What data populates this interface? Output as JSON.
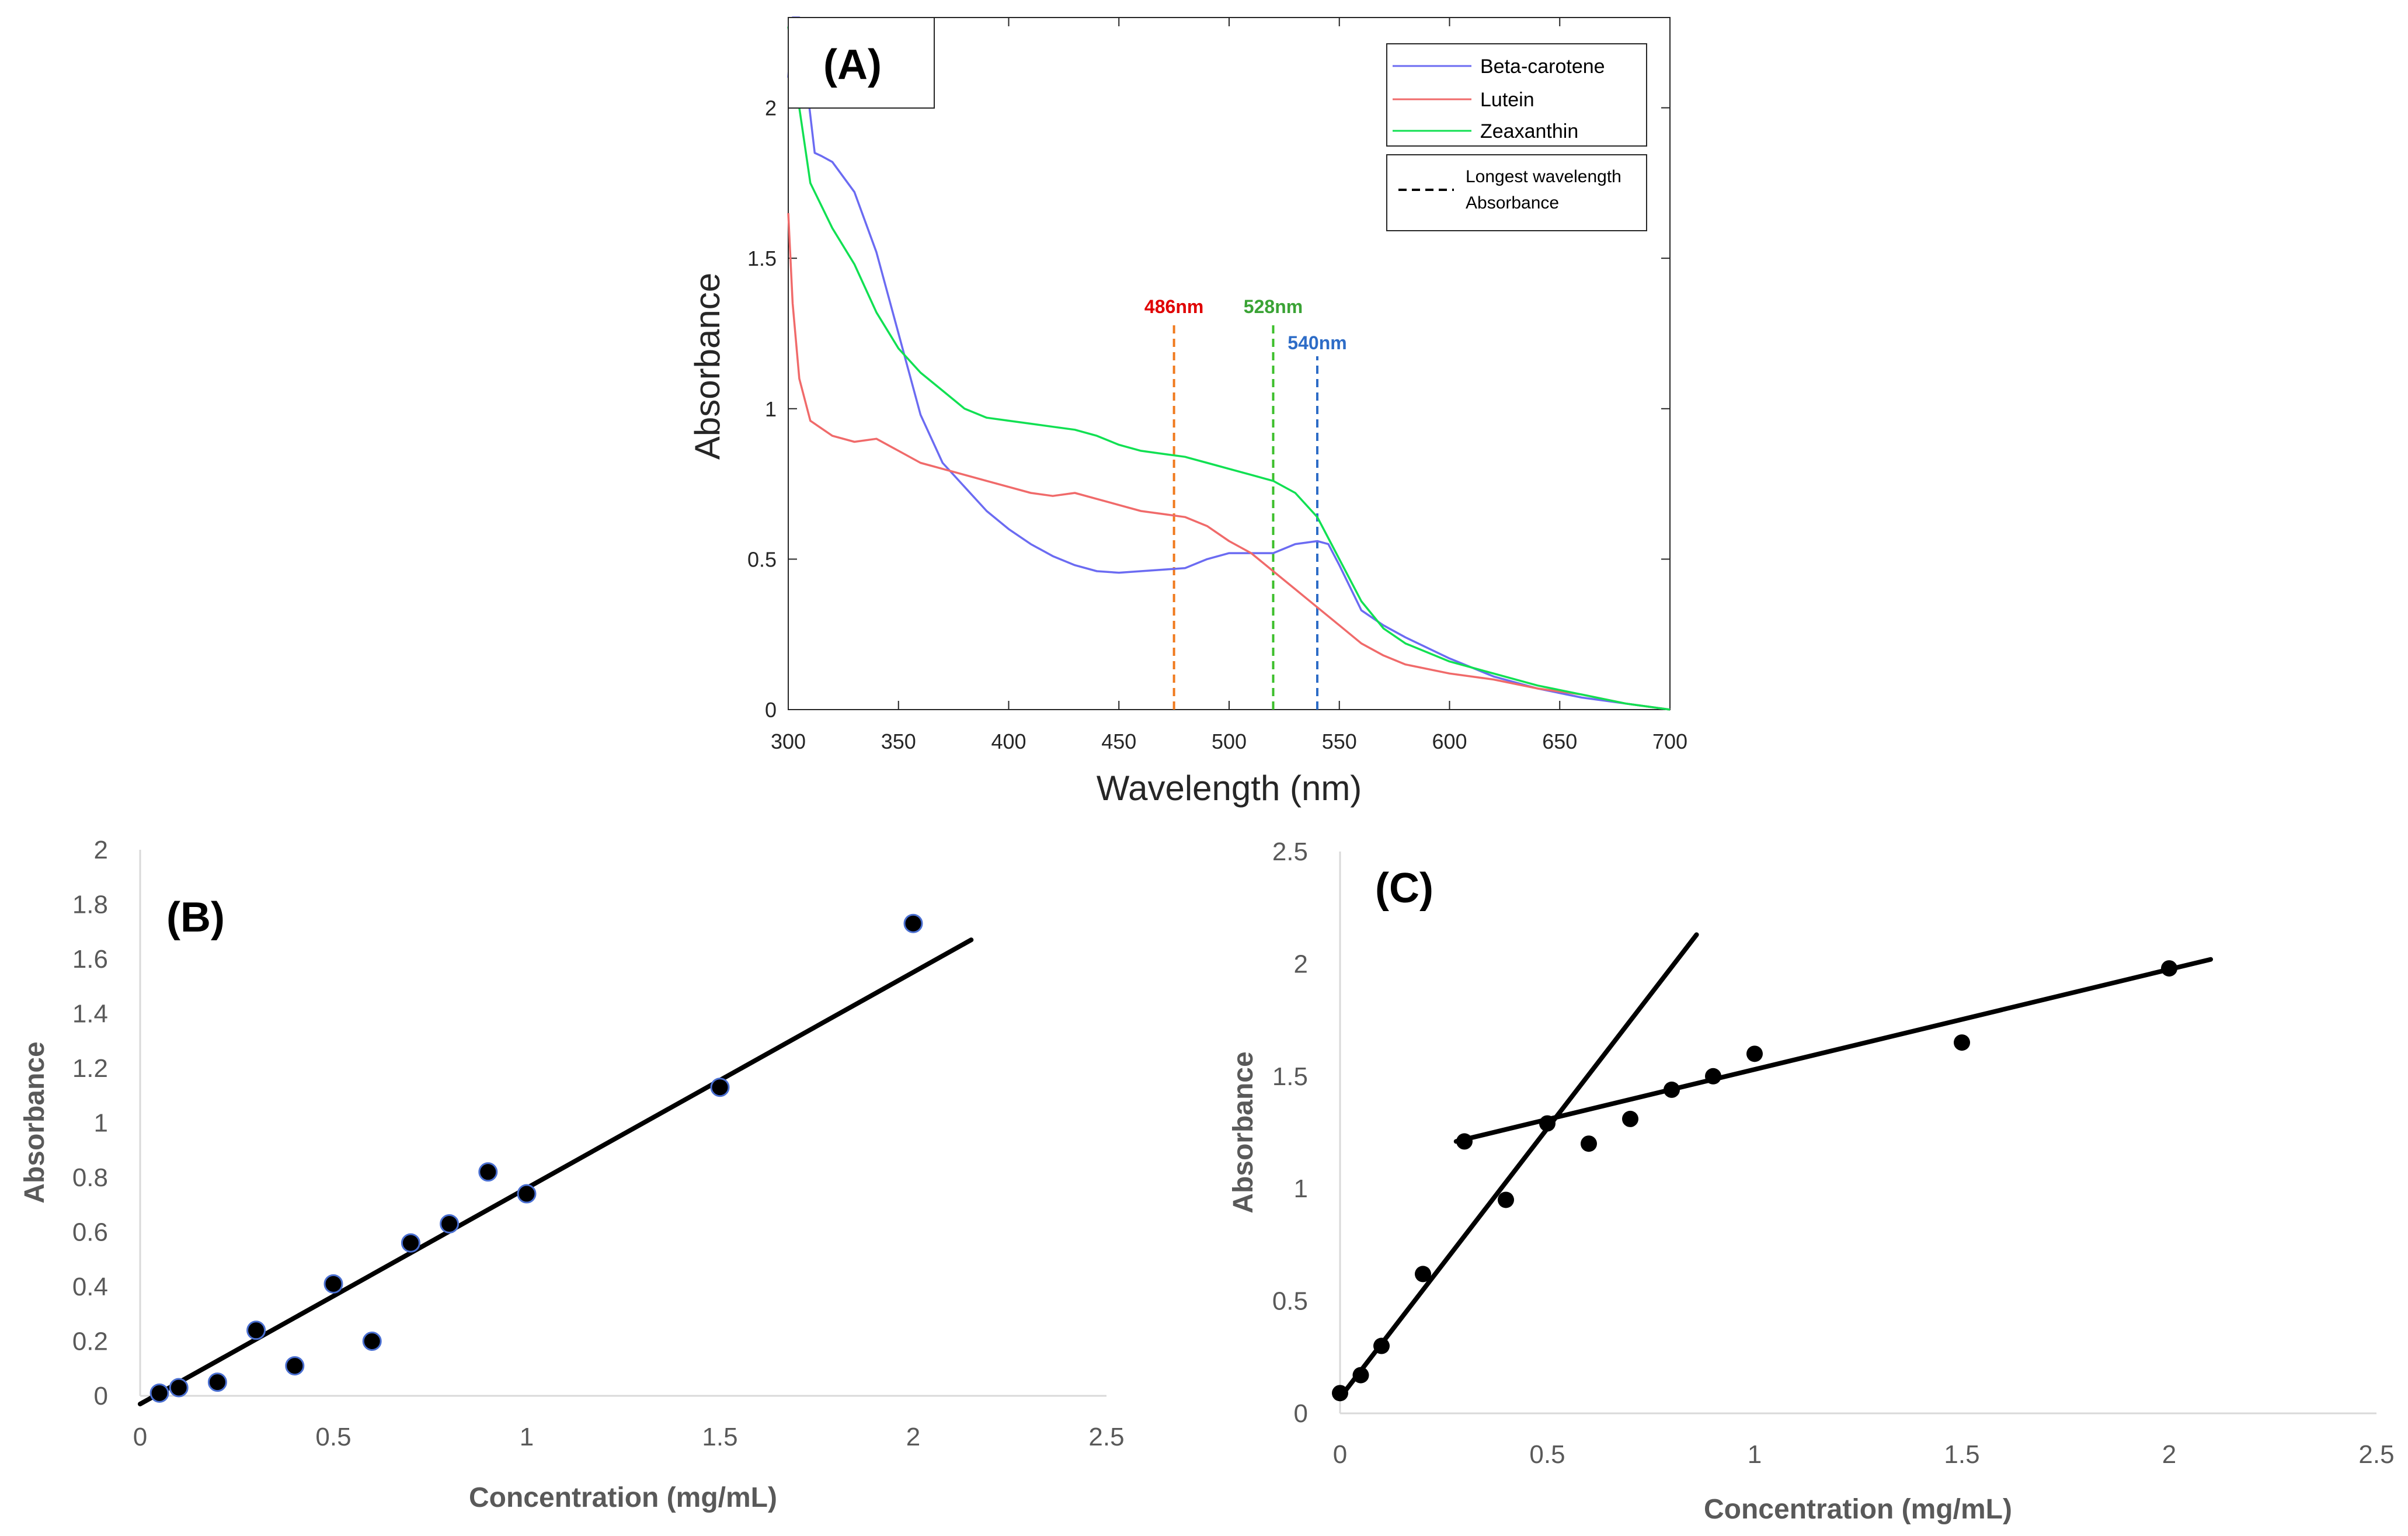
{
  "chart_data": [
    {
      "id": "A",
      "type": "line",
      "panel_label": "(A)",
      "xlabel": "Wavelength (nm)",
      "ylabel": "Absorbance",
      "xlim": [
        300,
        700
      ],
      "ylim": [
        0,
        2.3
      ],
      "x_ticks": [
        300,
        350,
        400,
        450,
        500,
        550,
        600,
        650,
        700
      ],
      "y_ticks": [
        0,
        0.5,
        1,
        1.5,
        2
      ],
      "x_tick_labels": [
        "300",
        "350",
        "400",
        "450",
        "500",
        "550",
        "600",
        "650",
        "700"
      ],
      "y_tick_labels": [
        "0",
        "0.5",
        "1",
        "1.5",
        "2"
      ],
      "legend": {
        "position": "top-right",
        "entries": [
          "Beta-carotene",
          "Lutein",
          "Zeaxanthin"
        ],
        "dashed_entry": [
          "Longest wavelength",
          "Absorbance"
        ]
      },
      "series": [
        {
          "name": "Beta-carotene",
          "color": "#6b6bf2",
          "x": [
            300,
            302,
            305,
            308,
            312,
            315,
            320,
            330,
            340,
            350,
            360,
            370,
            380,
            390,
            400,
            410,
            420,
            430,
            440,
            450,
            460,
            470,
            480,
            490,
            500,
            510,
            520,
            530,
            540,
            545,
            550,
            560,
            570,
            580,
            600,
            620,
            640,
            660,
            680,
            700
          ],
          "y": [
            2.1,
            2.3,
            2.3,
            2.1,
            1.85,
            1.84,
            1.82,
            1.72,
            1.52,
            1.25,
            0.98,
            0.82,
            0.74,
            0.66,
            0.6,
            0.55,
            0.51,
            0.48,
            0.46,
            0.455,
            0.46,
            0.465,
            0.47,
            0.5,
            0.52,
            0.52,
            0.52,
            0.55,
            0.56,
            0.55,
            0.48,
            0.33,
            0.28,
            0.24,
            0.17,
            0.11,
            0.07,
            0.04,
            0.02,
            0.0
          ]
        },
        {
          "name": "Lutein",
          "color": "#f06a6a",
          "x": [
            300,
            302,
            305,
            310,
            320,
            330,
            340,
            350,
            360,
            370,
            380,
            390,
            400,
            410,
            420,
            430,
            440,
            450,
            460,
            470,
            480,
            490,
            500,
            510,
            520,
            530,
            540,
            550,
            560,
            570,
            580,
            600,
            620,
            640,
            660,
            680,
            700
          ],
          "y": [
            1.65,
            1.35,
            1.1,
            0.96,
            0.91,
            0.89,
            0.9,
            0.86,
            0.82,
            0.8,
            0.78,
            0.76,
            0.74,
            0.72,
            0.71,
            0.72,
            0.7,
            0.68,
            0.66,
            0.65,
            0.64,
            0.61,
            0.56,
            0.52,
            0.46,
            0.4,
            0.34,
            0.28,
            0.22,
            0.18,
            0.15,
            0.12,
            0.1,
            0.07,
            0.05,
            0.02,
            0.0
          ]
        },
        {
          "name": "Zeaxanthin",
          "color": "#11e052",
          "x": [
            300,
            303,
            306,
            310,
            320,
            330,
            340,
            350,
            360,
            370,
            380,
            390,
            400,
            410,
            420,
            430,
            440,
            450,
            460,
            470,
            480,
            490,
            500,
            510,
            520,
            530,
            540,
            550,
            560,
            570,
            580,
            600,
            620,
            640,
            660,
            680,
            700
          ],
          "y": [
            2.27,
            2.1,
            1.95,
            1.75,
            1.6,
            1.48,
            1.32,
            1.2,
            1.12,
            1.06,
            1.0,
            0.97,
            0.96,
            0.95,
            0.94,
            0.93,
            0.91,
            0.88,
            0.86,
            0.85,
            0.84,
            0.82,
            0.8,
            0.78,
            0.76,
            0.72,
            0.64,
            0.5,
            0.36,
            0.27,
            0.22,
            0.16,
            0.12,
            0.08,
            0.05,
            0.02,
            0.0
          ]
        }
      ],
      "annotations": [
        {
          "label": "486nm",
          "x": 475,
          "y_top": 1.24,
          "line_color": "#f07a1e",
          "label_color": "#e00000"
        },
        {
          "label": "528nm",
          "x": 520,
          "y_top": 1.24,
          "line_color": "#3cbf2b",
          "label_color": "#3aa335"
        },
        {
          "label": "540nm",
          "x": 540,
          "y_top": 1.12,
          "line_color": "#2d6cc7",
          "label_color": "#2d6cc7"
        }
      ]
    },
    {
      "id": "B",
      "type": "scatter",
      "panel_label": "(B)",
      "xlabel": "Concentration (mg/mL)",
      "ylabel": "Absorbance",
      "xlim": [
        0,
        2.5
      ],
      "ylim": [
        0,
        2
      ],
      "x_ticks": [
        0,
        0.5,
        1,
        1.5,
        2,
        2.5
      ],
      "y_ticks": [
        0,
        0.2,
        0.4,
        0.6,
        0.8,
        1,
        1.2,
        1.4,
        1.6,
        1.8,
        2
      ],
      "x_tick_labels": [
        "0",
        "0.5",
        "1",
        "1.5",
        "2",
        "2.5"
      ],
      "y_tick_labels": [
        "0",
        "0.2",
        "0.4",
        "0.6",
        "0.8",
        "1",
        "1.2",
        "1.4",
        "1.6",
        "1.8",
        "2"
      ],
      "x": [
        0.05,
        0.1,
        0.2,
        0.3,
        0.4,
        0.5,
        0.6,
        0.7,
        0.8,
        0.9,
        1.0,
        1.5,
        2.0
      ],
      "y": [
        0.01,
        0.03,
        0.05,
        0.24,
        0.11,
        0.41,
        0.2,
        0.56,
        0.63,
        0.82,
        0.74,
        1.13,
        1.73
      ],
      "trendline": {
        "x": [
          0.0,
          2.15
        ],
        "y": [
          -0.03,
          1.67
        ]
      }
    },
    {
      "id": "C",
      "type": "scatter",
      "panel_label": "(C)",
      "xlabel": "Concentration (mg/mL)",
      "ylabel": "Absorbance",
      "xlim": [
        0,
        2.5
      ],
      "ylim": [
        0,
        2.5
      ],
      "x_ticks": [
        0,
        0.5,
        1,
        1.5,
        2,
        2.5
      ],
      "y_ticks": [
        0,
        0.5,
        1,
        1.5,
        2,
        2.5
      ],
      "x_tick_labels": [
        "0",
        "0.5",
        "1",
        "1.5",
        "2",
        "2.5"
      ],
      "y_tick_labels": [
        "0",
        "0.5",
        "1",
        "1.5",
        "2",
        "2.5"
      ],
      "x": [
        0.0,
        0.05,
        0.1,
        0.2,
        0.3,
        0.4,
        0.5,
        0.6,
        0.7,
        0.8,
        0.9,
        1.0,
        1.5,
        2.0
      ],
      "y": [
        0.09,
        0.17,
        0.3,
        0.62,
        1.21,
        0.95,
        1.29,
        1.2,
        1.31,
        1.44,
        1.5,
        1.6,
        1.65,
        1.98
      ],
      "trendlines": [
        {
          "x": [
            0.0,
            0.86
          ],
          "y": [
            0.07,
            2.13
          ]
        },
        {
          "x": [
            0.28,
            2.1
          ],
          "y": [
            1.21,
            2.02
          ]
        }
      ]
    }
  ]
}
